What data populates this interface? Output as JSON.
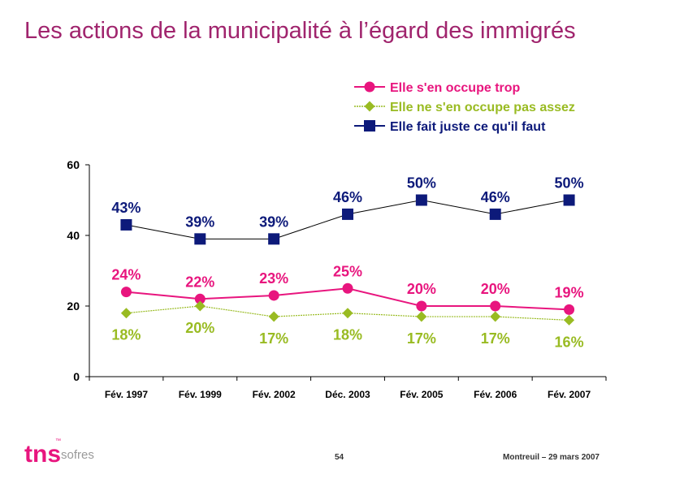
{
  "slide": {
    "title": "Les actions de la municipalité à l’égard des immigrés",
    "page_number": "54",
    "footer_text": "Montreuil – 29 mars 2007",
    "logo_tns": "tns",
    "logo_sofres": "sofres",
    "logo_tm": "™"
  },
  "colors": {
    "title": "#a0246d",
    "series_trop": "#e8157e",
    "series_pas_assez": "#99bb22",
    "series_juste": "#0d1a7a",
    "logo": "#e8157e"
  },
  "chart_data": {
    "type": "line",
    "categories": [
      "Fév. 1997",
      "Fév. 1999",
      "Fév. 2002",
      "Déc. 2003",
      "Fév. 2005",
      "Fév. 2006",
      "Fév. 2007"
    ],
    "ylim": [
      0,
      60
    ],
    "yticks": [
      0,
      20,
      40,
      60
    ],
    "grid": false,
    "legend_position": "top-right",
    "series": [
      {
        "name": "Elle s'en occupe trop",
        "values": [
          24,
          22,
          23,
          25,
          20,
          20,
          19
        ],
        "labels": [
          "24%",
          "22%",
          "23%",
          "25%",
          "20%",
          "20%",
          "19%"
        ],
        "marker": "circle",
        "color": "#e8157e",
        "label_pos": "above"
      },
      {
        "name": "Elle ne s'en occupe pas assez",
        "values": [
          18,
          20,
          17,
          18,
          17,
          17,
          16
        ],
        "labels": [
          "18%",
          "20%",
          "17%",
          "18%",
          "17%",
          "17%",
          "16%"
        ],
        "marker": "diamond",
        "color": "#99bb22",
        "label_pos": "below"
      },
      {
        "name": "Elle fait juste ce qu'il faut",
        "values": [
          43,
          39,
          39,
          46,
          50,
          46,
          50
        ],
        "labels": [
          "43%",
          "39%",
          "39%",
          "46%",
          "50%",
          "46%",
          "50%"
        ],
        "marker": "square",
        "color": "#0d1a7a",
        "label_pos": "above"
      }
    ]
  }
}
